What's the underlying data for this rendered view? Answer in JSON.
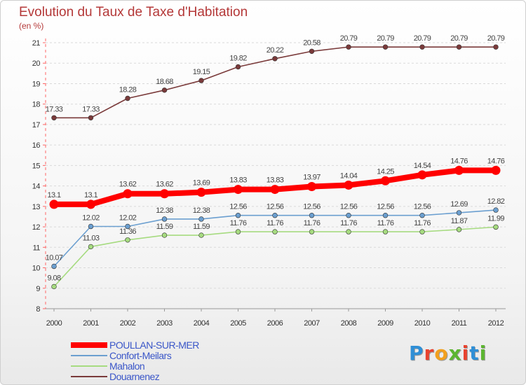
{
  "title": "Evolution du Taux de Taxe d'Habitation",
  "subtitle": "(en %)",
  "brand": {
    "letters": [
      "P",
      "r",
      "o",
      "x",
      "i",
      "t",
      "i"
    ],
    "colors": [
      "#2f8fd6",
      "#e8432f",
      "#f2a01e",
      "#5cb531",
      "#e8432f",
      "#2f8fd6",
      "#5cb531"
    ]
  },
  "chart_data": {
    "type": "line",
    "x": [
      2000,
      2001,
      2002,
      2003,
      2004,
      2005,
      2006,
      2007,
      2008,
      2009,
      2010,
      2011,
      2012
    ],
    "ylim": [
      8,
      21
    ],
    "yticks": [
      8,
      9,
      10,
      11,
      12,
      13,
      14,
      15,
      16,
      17,
      18,
      19,
      20,
      21
    ],
    "grid": "horizontal dashed",
    "legend_position": "bottom-left",
    "series": [
      {
        "name": "POULLAN-SUR-MER",
        "color": "#ff0000",
        "values": [
          13.1,
          13.1,
          13.62,
          13.62,
          13.69,
          13.83,
          13.83,
          13.97,
          14.04,
          14.25,
          14.54,
          14.76,
          14.76
        ],
        "labels": [
          "13.1",
          "13.1",
          "13.62",
          "13.62",
          "13.69",
          "13.83",
          "13.83",
          "13.97",
          "14.04",
          "14.25",
          "14.54",
          "14.76",
          "14.76"
        ]
      },
      {
        "name": "Confort-Meilars",
        "color": "#6b9fd0",
        "values": [
          10.07,
          12.02,
          12.02,
          12.38,
          12.38,
          12.56,
          12.56,
          12.56,
          12.56,
          12.56,
          12.56,
          12.69,
          12.82
        ],
        "labels": [
          "10.07",
          "12.02",
          "12.02",
          "12.38",
          "12.38",
          "12.56",
          "12.56",
          "12.56",
          "12.56",
          "12.56",
          "12.56",
          "12.69",
          "12.82"
        ]
      },
      {
        "name": "Mahalon",
        "color": "#a6db80",
        "values": [
          9.08,
          11.03,
          11.36,
          11.59,
          11.59,
          11.76,
          11.76,
          11.76,
          11.76,
          11.76,
          11.76,
          11.87,
          11.99
        ],
        "labels": [
          "9.08",
          "11.03",
          "11.36",
          "11.59",
          "11.59",
          "11.76",
          "11.76",
          "11.76",
          "11.76",
          "11.76",
          "11.76",
          "11.87",
          "11.99"
        ]
      },
      {
        "name": "Douarnenez",
        "color": "#7a3a3a",
        "values": [
          17.33,
          17.33,
          18.28,
          18.68,
          19.15,
          19.82,
          20.22,
          20.58,
          20.79,
          20.79,
          20.79,
          20.79,
          20.79
        ],
        "labels": [
          "17.33",
          "17.33",
          "18.28",
          "18.68",
          "19.15",
          "19.82",
          "20.22",
          "20.58",
          "20.79",
          "20.79",
          "20.79",
          "20.79",
          "20.79"
        ]
      }
    ]
  }
}
